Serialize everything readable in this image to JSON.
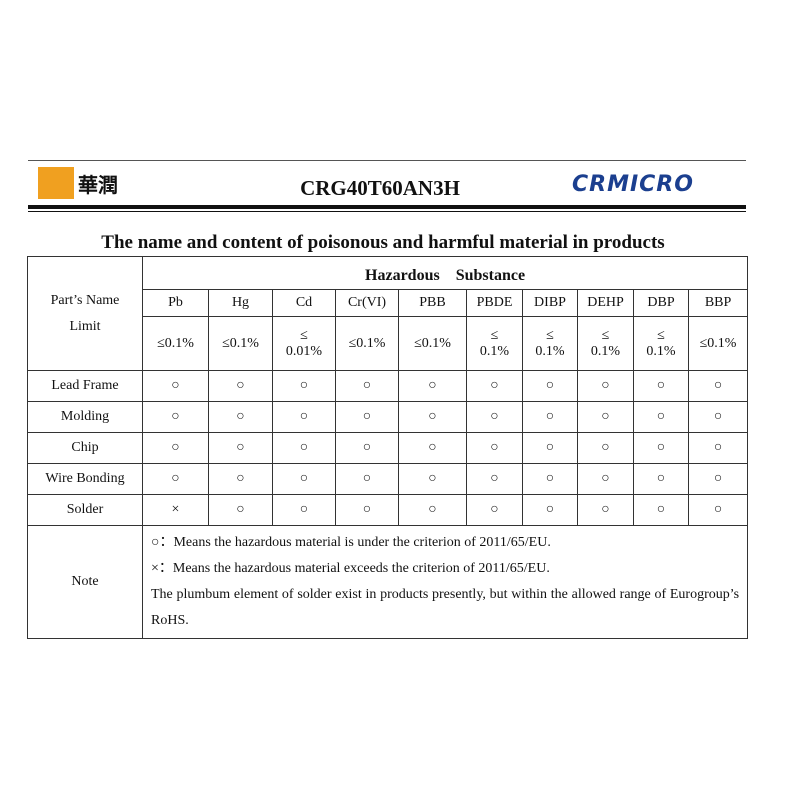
{
  "header": {
    "logo_left_text": "華潤",
    "title": "CRG40T60AN3H",
    "logo_right_text": "CRMICRO"
  },
  "heading": "The name and content of poisonous and harmful material in products",
  "table": {
    "row_header_1": "Part’s Name",
    "row_header_2": "Limit",
    "group_header": "Hazardous　Substance",
    "substances": [
      "Pb",
      "Hg",
      "Cd",
      "Cr(VI)",
      "PBB",
      "PBDE",
      "DIBP",
      "DEHP",
      "DBP",
      "BBP"
    ],
    "limits": [
      "≤0.1%",
      "≤0.1%",
      "≤\n0.01%",
      "≤0.1%",
      "≤0.1%",
      "≤\n0.1%",
      "≤\n0.1%",
      "≤\n0.1%",
      "≤\n0.1%",
      "≤0.1%"
    ],
    "rows": [
      {
        "part": "Lead Frame",
        "marks": [
          "○",
          "○",
          "○",
          "○",
          "○",
          "○",
          "○",
          "○",
          "○",
          "○"
        ]
      },
      {
        "part": "Molding",
        "marks": [
          "○",
          "○",
          "○",
          "○",
          "○",
          "○",
          "○",
          "○",
          "○",
          "○"
        ]
      },
      {
        "part": "Chip",
        "marks": [
          "○",
          "○",
          "○",
          "○",
          "○",
          "○",
          "○",
          "○",
          "○",
          "○"
        ]
      },
      {
        "part": "Wire Bonding",
        "marks": [
          "○",
          "○",
          "○",
          "○",
          "○",
          "○",
          "○",
          "○",
          "○",
          "○"
        ]
      },
      {
        "part": "Solder",
        "marks": [
          "×",
          "○",
          "○",
          "○",
          "○",
          "○",
          "○",
          "○",
          "○",
          "○"
        ]
      }
    ],
    "note_label": "Note",
    "notes": [
      "○：Means the hazardous material is under the criterion of 2011/65/EU.",
      "×：Means the hazardous material exceeds the criterion of 2011/65/EU.",
      "The plumbum element of solder exist in products presently, but within the allowed range of Eurogroup’s RoHS."
    ]
  }
}
